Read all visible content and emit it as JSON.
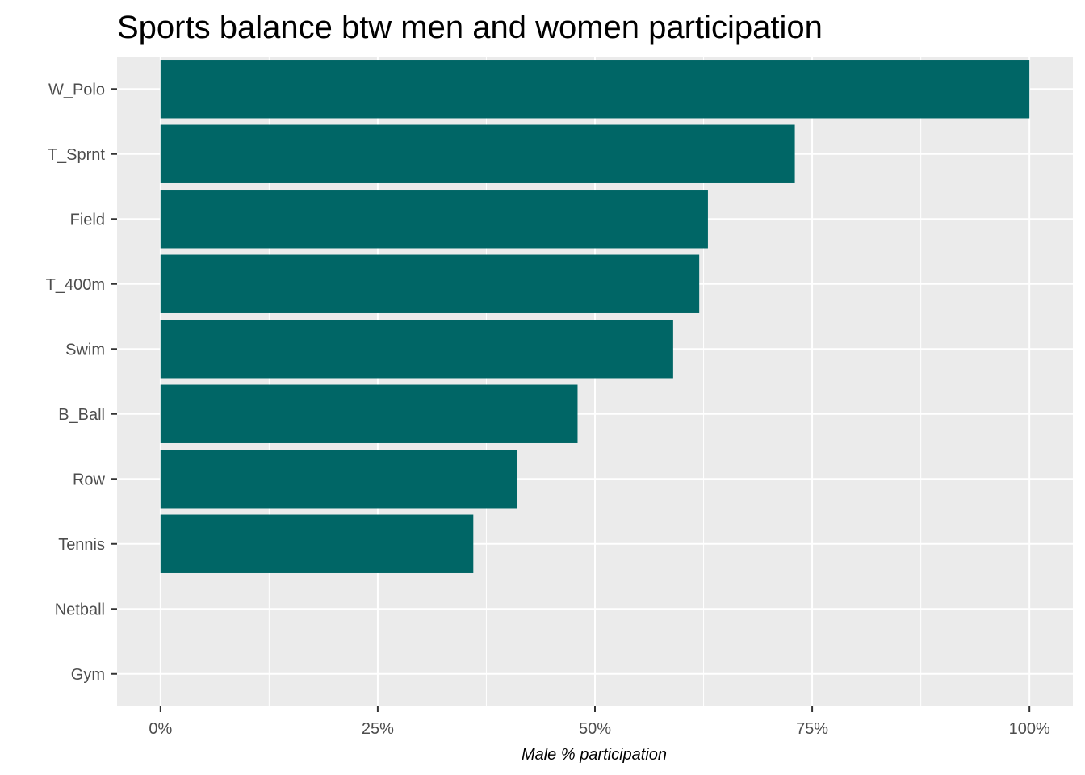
{
  "chart_data": {
    "type": "bar",
    "orientation": "horizontal",
    "title": "Sports balance btw men and women participation",
    "xlabel": "Male % participation",
    "ylabel": "",
    "categories": [
      "W_Polo",
      "T_Sprnt",
      "Field",
      "T_400m",
      "Swim",
      "B_Ball",
      "Row",
      "Tennis",
      "Netball",
      "Gym"
    ],
    "values": [
      1.0,
      0.73,
      0.63,
      0.62,
      0.59,
      0.48,
      0.41,
      0.36,
      0.0,
      0.0
    ],
    "xlim": [
      -0.05,
      1.05
    ],
    "x_ticks": [
      0,
      0.25,
      0.5,
      0.75,
      1.0
    ],
    "x_tick_labels": [
      "0%",
      "25%",
      "50%",
      "75%",
      "100%"
    ],
    "bar_color": "#006666",
    "panel_background": "#EBEBEB",
    "grid_color": "#FFFFFF",
    "grid": true,
    "legend": "none"
  }
}
